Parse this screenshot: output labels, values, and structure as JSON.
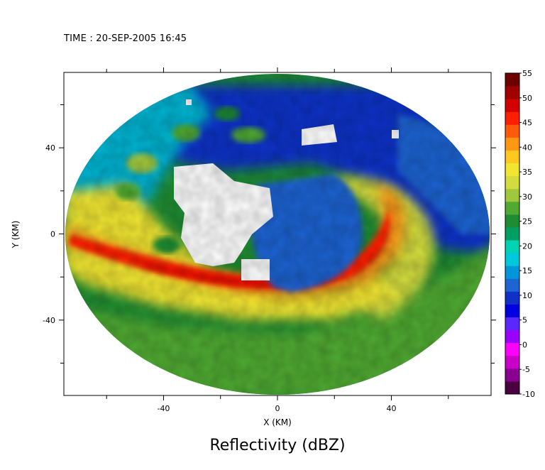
{
  "header": {
    "time_label": "TIME : 20-SEP-2005 16:45"
  },
  "chart_data": {
    "type": "heatmap",
    "title": "Reflectivity (dBZ)",
    "xlabel": "X (KM)",
    "ylabel": "Y (KM)",
    "xlim": [
      -75,
      75
    ],
    "ylim": [
      -75,
      75
    ],
    "x_ticks": [
      -40,
      0,
      40
    ],
    "y_ticks": [
      -40,
      0,
      40
    ],
    "colorbar": {
      "label": "dBZ",
      "min": -10,
      "max": 55,
      "ticks": [
        55,
        50,
        45,
        40,
        35,
        30,
        25,
        20,
        15,
        10,
        5,
        0,
        -5,
        -10
      ]
    },
    "colors": {
      "scale": [
        "#4b0040",
        "#8a0090",
        "#c800c8",
        "#ff00ff",
        "#9900ff",
        "#5a28ff",
        "#0000e0",
        "#1030c8",
        "#1e64d2",
        "#0096dc",
        "#00c8dc",
        "#00d2b4",
        "#00a064",
        "#1e8c32",
        "#50aa32",
        "#a0c83c",
        "#d2dc3c",
        "#f0e632",
        "#ffc81e",
        "#ff9614",
        "#ff5a0a",
        "#ff1e00",
        "#d20000",
        "#a00000",
        "#6e0000"
      ],
      "no_data": "#ffffff"
    }
  }
}
